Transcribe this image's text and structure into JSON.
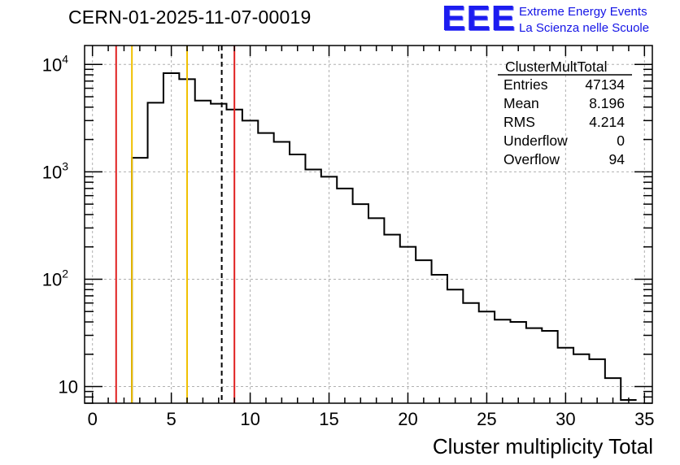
{
  "header": {
    "title": "CERN-01-2025-11-07-00019",
    "logo_mark": "EEE",
    "logo_line1": "Extreme Energy Events",
    "logo_line2": "La Scienza nelle Scuole"
  },
  "stats_box": {
    "name": "ClusterMultTotal",
    "rows": [
      {
        "label": "Entries",
        "value": "47134"
      },
      {
        "label": "Mean",
        "value": "8.196"
      },
      {
        "label": "RMS",
        "value": "4.214"
      },
      {
        "label": "Underflow",
        "value": "0"
      },
      {
        "label": "Overflow",
        "value": "94"
      }
    ]
  },
  "colors": {
    "histogram": "#000000",
    "red_line": "#e02020",
    "yellow_line": "#f0c000",
    "mean_line": "#000000",
    "grid": "#b0b0b0",
    "logo": "#1414e6"
  },
  "chart_data": {
    "type": "histogram",
    "title": "CERN-01-2025-11-07-00019",
    "xlabel": "Cluster multiplicity Total",
    "ylabel": "",
    "yscale": "log",
    "xlim": [
      -0.5,
      35.5
    ],
    "ylim": [
      7,
      15000
    ],
    "grid": true,
    "bin_width": 1,
    "bin_edges_start": 2.5,
    "values": [
      1350,
      4400,
      8300,
      7300,
      4600,
      4300,
      3800,
      3000,
      2300,
      1900,
      1450,
      1050,
      900,
      700,
      500,
      370,
      260,
      200,
      150,
      110,
      80,
      60,
      50,
      42,
      40,
      35,
      33,
      23,
      20,
      18,
      12,
      7.5
    ],
    "values_note": "approximate counts per unit-width bin read off the log axis",
    "xticks": [
      0,
      5,
      10,
      15,
      20,
      25,
      30,
      35
    ],
    "xtick_labels": [
      "0",
      "5",
      "10",
      "15",
      "20",
      "25",
      "30",
      "35"
    ],
    "yticks": [
      {
        "value": 10,
        "base": "10",
        "exp": ""
      },
      {
        "value": 100,
        "base": "10",
        "exp": "2"
      },
      {
        "value": 1000,
        "base": "10",
        "exp": "3"
      },
      {
        "value": 10000,
        "base": "10",
        "exp": "4"
      }
    ],
    "vertical_lines": [
      {
        "x": 1.5,
        "color": "red",
        "style": "solid"
      },
      {
        "x": 2.5,
        "color": "yellow",
        "style": "solid"
      },
      {
        "x": 6.0,
        "color": "yellow",
        "style": "solid"
      },
      {
        "x": 8.196,
        "color": "black",
        "style": "dashed"
      },
      {
        "x": 9.0,
        "color": "red",
        "style": "solid"
      }
    ]
  }
}
